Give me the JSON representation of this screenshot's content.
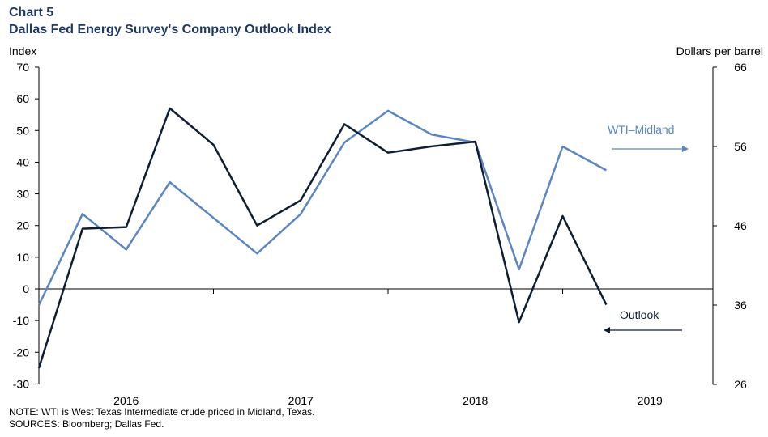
{
  "title_line_1": "Chart 5",
  "title_line_2": "Dallas Fed Energy Survey's Company Outlook Index",
  "notes": {
    "note": "NOTE: WTI is West Texas Intermediate crude priced in Midland, Texas.",
    "sources": "SOURCES: Bloomberg; Dallas Fed."
  },
  "colors": {
    "outlook": "#0f1f33",
    "wti": "#5b86c4",
    "axis": "#000000"
  },
  "chart_data": {
    "type": "line",
    "title": "Dallas Fed Energy Survey's Company Outlook Index",
    "ylabel": "Index",
    "y2label": "Dollars per barrel",
    "ylim": [
      -25,
      70
    ],
    "yticks": [
      70,
      60,
      50,
      40,
      30,
      20,
      10,
      0,
      -10,
      -20,
      -30
    ],
    "y2lim": [
      26,
      66
    ],
    "y2ticks": [
      66,
      56,
      46,
      36,
      26
    ],
    "x_categories": [
      "2016",
      "2017",
      "2018",
      "2019"
    ],
    "grid": false,
    "quarters": [
      "2015 Q3",
      "2015 Q4",
      "2016 Q1",
      "2016 Q2",
      "2016 Q3",
      "2016 Q4",
      "2017 Q1",
      "2017 Q2",
      "2017 Q3",
      "2017 Q4",
      "2018 Q1",
      "2018 Q2",
      "2018 Q3",
      "2018 Q4"
    ],
    "series": [
      {
        "name": "Outlook",
        "axis": "left",
        "values": [
          -25,
          19,
          19.5,
          57,
          45.5,
          20,
          28,
          52,
          43,
          45,
          46.5,
          -10.5,
          23,
          -5
        ]
      },
      {
        "name": "WTI–Midland",
        "axis": "right",
        "values": [
          36,
          47.5,
          43,
          51.5,
          47,
          42.5,
          47.5,
          56.5,
          60.5,
          57.5,
          56.5,
          40.5,
          56,
          53
        ]
      }
    ]
  }
}
